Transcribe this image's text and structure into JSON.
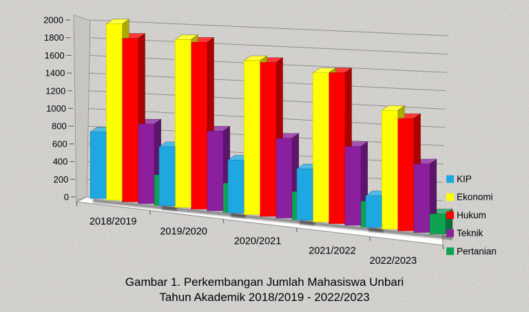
{
  "chart_data": {
    "type": "bar",
    "variant": "3d-clustered-column",
    "title": "",
    "xlabel": "",
    "ylabel": "",
    "categories": [
      "2018/2019",
      "2019/2020",
      "2020/2021",
      "2021/2022",
      "2022/2023"
    ],
    "series": [
      {
        "name": "KIP",
        "color": "#1EA7E0",
        "values": [
          740,
          640,
          560,
          530,
          320
        ]
      },
      {
        "name": "Ekonomi",
        "color": "#FFFF00",
        "values": [
          1950,
          1810,
          1620,
          1530,
          1190
        ]
      },
      {
        "name": "Hukum",
        "color": "#FE0000",
        "values": [
          1800,
          1790,
          1610,
          1540,
          1120
        ]
      },
      {
        "name": "Teknik",
        "color": "#8B1F9E",
        "values": [
          870,
          850,
          830,
          800,
          680
        ]
      },
      {
        "name": "Pertanian",
        "color": "#0EA350",
        "values": [
          330,
          310,
          290,
          260,
          200
        ]
      }
    ],
    "ylim": [
      0,
      2000
    ],
    "ytick_step": 200,
    "grid": true,
    "legend_position": "right"
  },
  "caption": {
    "line1": "Gambar 1. Perkembangan Jumlah Mahasiswa Unbari",
    "line2": "Tahun Akademik 2018/2019 - 2022/2023"
  },
  "colors": {
    "background": "#ECEAE6",
    "gridline": "#8F8F8F",
    "wall": "#C7C5C1",
    "wall_edge": "#8A8A8A",
    "floor": "#FFFFFF",
    "text": "#000000",
    "shadow": "#222222"
  }
}
